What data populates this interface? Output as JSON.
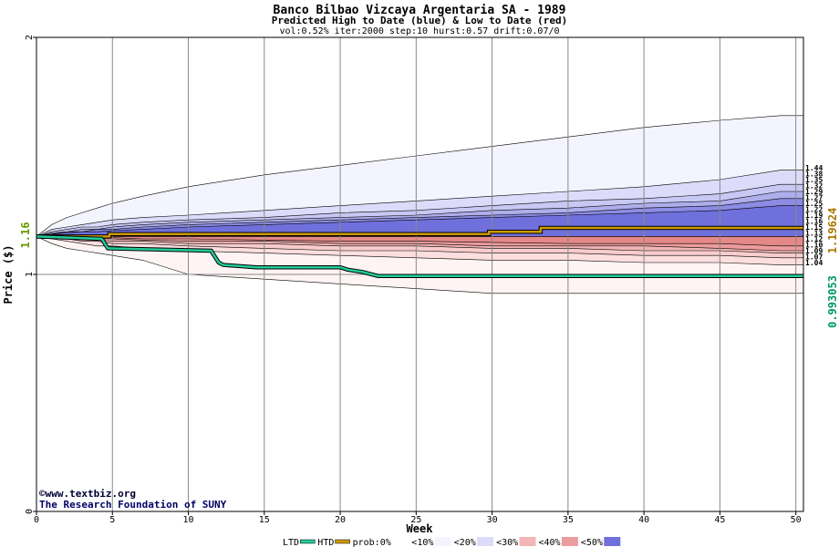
{
  "chart_data": {
    "type": "area",
    "title": "Banco Bilbao Vizcaya Argentaria SA  - 1989",
    "subtitle": "Predicted High to Date (blue) &  Low to Date (red)",
    "params": "vol:0.52% iter:2000 step:10 hurst:0.57 drift:0.07/0",
    "xlabel": "Week",
    "ylabel": "Price ($)",
    "xlim": [
      0,
      50.5
    ],
    "ylim": [
      0,
      2
    ],
    "x_ticks": [
      "0",
      "5",
      "10",
      "15",
      "20",
      "25",
      "30",
      "35",
      "40",
      "45",
      "50"
    ],
    "y_ticks": [
      "0",
      "1",
      "2"
    ],
    "start_price": 1.16,
    "start_price_label": "1.16",
    "grid": true,
    "htd_right_label": "1.19624",
    "ltd_right_label": "0.993053",
    "right_labels": [
      "1.44",
      "1.38",
      "1.35",
      "1.32",
      "1.29",
      "1.27",
      "1.25",
      "1.22",
      "1.19",
      "1.16",
      "1.15",
      "1.13",
      "1.12",
      "1.10",
      "1.09",
      "1.07",
      "1.04"
    ],
    "right_label_values": [
      1.44,
      1.38,
      1.35,
      1.32,
      1.29,
      1.27,
      1.25,
      1.22,
      1.19,
      1.16,
      1.15,
      1.13,
      1.12,
      1.1,
      1.09,
      1.07,
      1.04
    ],
    "envelope": {
      "x": [
        0,
        1,
        2,
        3,
        4,
        5,
        7,
        10,
        15,
        20,
        25,
        30,
        35,
        40,
        45,
        49,
        50.5
      ],
      "high_quantiles": [
        {
          "q": "0%",
          "values": [
            1.16,
            1.21,
            1.24,
            1.26,
            1.28,
            1.3,
            1.33,
            1.37,
            1.42,
            1.46,
            1.5,
            1.54,
            1.58,
            1.62,
            1.65,
            1.67,
            1.67
          ]
        },
        {
          "q": "10%",
          "values": [
            1.16,
            1.19,
            1.2,
            1.21,
            1.22,
            1.23,
            1.24,
            1.25,
            1.27,
            1.29,
            1.31,
            1.33,
            1.35,
            1.37,
            1.4,
            1.44,
            1.44
          ]
        },
        {
          "q": "20%",
          "values": [
            1.16,
            1.18,
            1.19,
            1.2,
            1.2,
            1.21,
            1.22,
            1.23,
            1.24,
            1.26,
            1.27,
            1.29,
            1.31,
            1.32,
            1.34,
            1.38,
            1.38
          ]
        },
        {
          "q": "30%",
          "values": [
            1.16,
            1.175,
            1.18,
            1.19,
            1.19,
            1.2,
            1.21,
            1.22,
            1.23,
            1.24,
            1.25,
            1.27,
            1.28,
            1.3,
            1.31,
            1.35,
            1.35
          ]
        },
        {
          "q": "40%",
          "values": [
            1.16,
            1.17,
            1.18,
            1.18,
            1.19,
            1.19,
            1.2,
            1.21,
            1.22,
            1.23,
            1.24,
            1.25,
            1.26,
            1.28,
            1.29,
            1.32,
            1.32
          ]
        },
        {
          "q": "50%",
          "values": [
            1.16,
            1.17,
            1.175,
            1.18,
            1.18,
            1.185,
            1.19,
            1.2,
            1.21,
            1.22,
            1.23,
            1.24,
            1.25,
            1.26,
            1.27,
            1.29,
            1.29
          ]
        }
      ],
      "low_quantiles": [
        {
          "q": "0%",
          "values": [
            1.16,
            1.13,
            1.11,
            1.1,
            1.09,
            1.08,
            1.06,
            1.0,
            0.98,
            0.96,
            0.94,
            0.92,
            0.92,
            0.92,
            0.92,
            0.92,
            0.92
          ]
        },
        {
          "q": "10%",
          "values": [
            1.16,
            1.15,
            1.14,
            1.13,
            1.12,
            1.12,
            1.11,
            1.1,
            1.09,
            1.08,
            1.07,
            1.06,
            1.06,
            1.05,
            1.05,
            1.04,
            1.04
          ]
        },
        {
          "q": "20%",
          "values": [
            1.16,
            1.155,
            1.15,
            1.14,
            1.14,
            1.13,
            1.13,
            1.12,
            1.11,
            1.1,
            1.1,
            1.09,
            1.09,
            1.08,
            1.08,
            1.07,
            1.07
          ]
        },
        {
          "q": "30%",
          "values": [
            1.16,
            1.157,
            1.153,
            1.15,
            1.145,
            1.14,
            1.14,
            1.13,
            1.13,
            1.12,
            1.12,
            1.11,
            1.11,
            1.1,
            1.1,
            1.09,
            1.09
          ]
        },
        {
          "q": "40%",
          "values": [
            1.16,
            1.158,
            1.156,
            1.153,
            1.15,
            1.15,
            1.145,
            1.14,
            1.14,
            1.13,
            1.13,
            1.12,
            1.12,
            1.12,
            1.11,
            1.1,
            1.1
          ]
        },
        {
          "q": "50%",
          "values": [
            1.16,
            1.159,
            1.158,
            1.157,
            1.155,
            1.155,
            1.15,
            1.15,
            1.145,
            1.14,
            1.14,
            1.135,
            1.13,
            1.13,
            1.13,
            1.12,
            1.12
          ]
        }
      ]
    },
    "series": [
      {
        "key": "HTD",
        "color": "#cc9900",
        "x": [
          0,
          4.8,
          4.8,
          9,
          9,
          29.8,
          29.8,
          33.2,
          33.2,
          50.5
        ],
        "y": [
          1.16,
          1.16,
          1.17,
          1.17,
          1.17,
          1.17,
          1.18,
          1.18,
          1.196,
          1.196
        ]
      },
      {
        "key": "LTD",
        "color": "#22cc99",
        "x": [
          0,
          4.3,
          4.5,
          4.7,
          4.8,
          11.5,
          11.8,
          12.0,
          12.3,
          14.5,
          20.0,
          20.5,
          21.5,
          22.5,
          50.5
        ],
        "y": [
          1.16,
          1.15,
          1.13,
          1.11,
          1.11,
          1.1,
          1.07,
          1.05,
          1.04,
          1.03,
          1.03,
          1.02,
          1.01,
          0.993,
          0.993
        ]
      }
    ],
    "colors": {
      "axis": "#000000",
      "grid": "#888888",
      "htd": "#cc9900",
      "ltd": "#22cc99",
      "blue_bands": [
        "#f4f4ff",
        "#dcdcfa",
        "#c8c8f4",
        "#aeaeec",
        "#8c8ce4",
        "#7070dc"
      ],
      "red_bands": [
        "#fff4f4",
        "#fcdede",
        "#f8cccc",
        "#f2b6b6",
        "#ec9c9c",
        "#e48888"
      ],
      "text_dark": "#000033",
      "label_blue": "#000066",
      "label_gold": "#aa7700",
      "label_green": "#009966"
    },
    "legend": {
      "placement": "bottom",
      "items": [
        {
          "label": "LTD",
          "swatch": "#22cc99"
        },
        {
          "label": "HTD",
          "swatch": "#cc9900"
        },
        {
          "label": "prob:0%",
          "swatch": "#ffffff"
        },
        {
          "label": "<10%",
          "swatch": "#f4f4ff"
        },
        {
          "label": "<20%",
          "swatch": "#dcdcfa"
        },
        {
          "label": "<30%",
          "swatch": "#f2b6b6"
        },
        {
          "label": "<40%",
          "swatch": "#ec9c9c"
        },
        {
          "label": "<50%",
          "swatch": "#7070dc"
        }
      ]
    },
    "credits": [
      "©www.textbiz.org",
      "The Research Foundation of SUNY"
    ]
  }
}
